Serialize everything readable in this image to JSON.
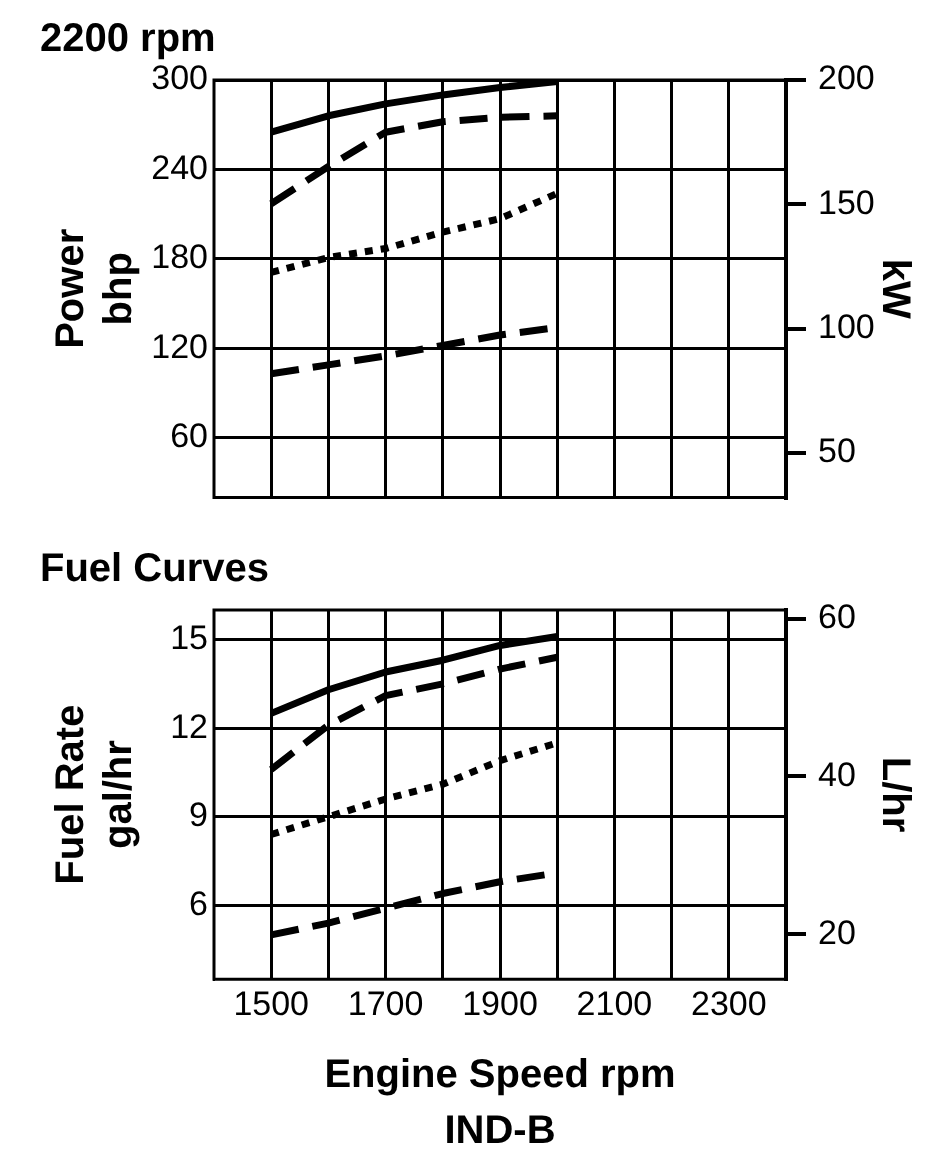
{
  "chart_data": [
    {
      "type": "line",
      "title": "2200 rpm",
      "ylabel": "Power\nbhp",
      "y2label": "kW",
      "x": [
        1500,
        1600,
        1700,
        1800,
        1900,
        2000
      ],
      "xlim": [
        1400,
        2400
      ],
      "xticks": [
        1500,
        {
          "value": 1600,
          "label": null
        },
        1700,
        {
          "value": 1800,
          "label": null
        },
        1900,
        {
          "value": 2000,
          "label": null
        },
        2100,
        {
          "value": 2200,
          "label": null
        },
        2300
      ],
      "ylim": [
        20,
        300
      ],
      "yticks": [
        60,
        120,
        180,
        240,
        300
      ],
      "y2lim": [
        32,
        200
      ],
      "y2ticks": [
        50,
        100,
        150,
        200
      ],
      "tick_labels": "y",
      "grid": true,
      "legend": false,
      "marker": "none",
      "series": [
        {
          "color": "#000000",
          "line_style": "solid",
          "values": [
            265,
            276,
            284,
            290,
            295,
            299
          ]
        },
        {
          "color": "#000000",
          "line_style": "dashed",
          "values": [
            217,
            242,
            265,
            272,
            275,
            276
          ]
        },
        {
          "color": "#000000",
          "line_style": "dotted",
          "values": [
            171,
            181,
            187,
            198,
            207,
            224
          ]
        },
        {
          "color": "#000000",
          "line_style": "dashed",
          "values": [
            103,
            109,
            115,
            122,
            129,
            134
          ]
        }
      ]
    },
    {
      "type": "line",
      "title": "Fuel Curves",
      "ylabel": "Fuel Rate\ngal/hr",
      "y2label": "L/hr",
      "xlabel": "Engine Speed rpm",
      "annotations": [
        "IND-B"
      ],
      "x": [
        1500,
        1600,
        1700,
        1800,
        1900,
        2000
      ],
      "xlim": [
        1400,
        2400
      ],
      "xticks": [
        1500,
        {
          "value": 1600,
          "label": null
        },
        1700,
        {
          "value": 1800,
          "label": null
        },
        1900,
        {
          "value": 2000,
          "label": null
        },
        2100,
        {
          "value": 2200,
          "label": null
        },
        2300
      ],
      "ylim": [
        3.5,
        16
      ],
      "yticks": [
        6,
        9,
        12,
        15
      ],
      "y2lim": [
        14.3,
        61.1
      ],
      "y2ticks": [
        20,
        40,
        60
      ],
      "grid": true,
      "legend": false,
      "marker": "none",
      "series": [
        {
          "color": "#000000",
          "line_style": "solid",
          "values": [
            12.5,
            13.3,
            13.9,
            14.3,
            14.8,
            15.1
          ]
        },
        {
          "color": "#000000",
          "line_style": "dashed",
          "values": [
            10.6,
            12.1,
            13.1,
            13.5,
            14.0,
            14.4
          ]
        },
        {
          "color": "#000000",
          "line_style": "dotted",
          "values": [
            8.4,
            9.0,
            9.6,
            10.1,
            10.9,
            11.5
          ]
        },
        {
          "color": "#000000",
          "line_style": "dashed",
          "values": [
            5.0,
            5.4,
            5.9,
            6.4,
            6.8,
            7.1
          ]
        }
      ]
    }
  ]
}
